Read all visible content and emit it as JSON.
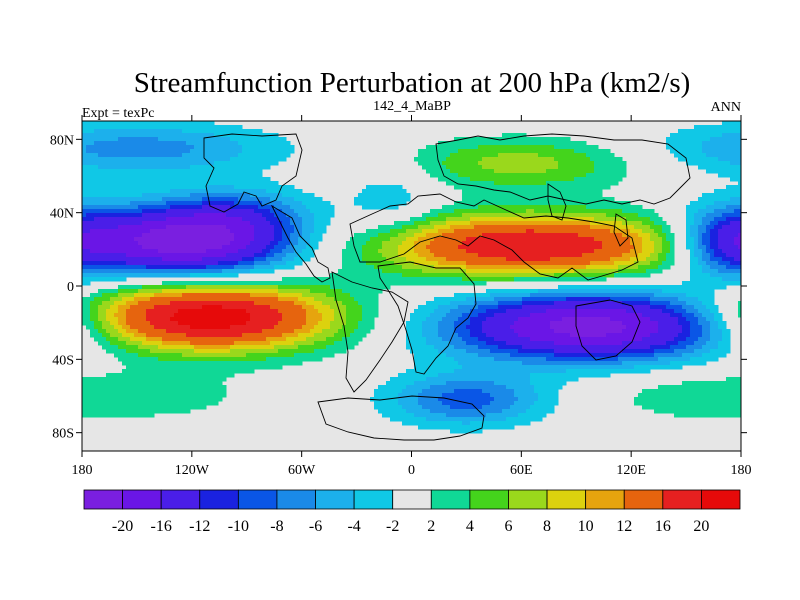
{
  "chart_data": {
    "type": "heatmap",
    "title": "Streamfunction Perturbation at 200 hPa (km2/s)",
    "subtitle_left": "Expt = texPc",
    "subtitle_center": "142_4_MaBP",
    "subtitle_right": "ANN",
    "x_ticks": [
      {
        "value": -180,
        "label": "180"
      },
      {
        "value": -120,
        "label": "120W"
      },
      {
        "value": -60,
        "label": "60W"
      },
      {
        "value": 0,
        "label": "0"
      },
      {
        "value": 60,
        "label": "60E"
      },
      {
        "value": 120,
        "label": "120E"
      },
      {
        "value": 180,
        "label": "180"
      }
    ],
    "y_ticks": [
      {
        "value": 80,
        "label": "80N"
      },
      {
        "value": 40,
        "label": "40N"
      },
      {
        "value": 0,
        "label": "0"
      },
      {
        "value": -40,
        "label": "40S"
      },
      {
        "value": -80,
        "label": "80S"
      }
    ],
    "xlim": [
      -180,
      180
    ],
    "ylim": [
      -90,
      90
    ],
    "levels": [
      -20,
      -16,
      -12,
      -10,
      -8,
      -6,
      -4,
      -2,
      2,
      4,
      6,
      8,
      10,
      12,
      16,
      20
    ],
    "level_labels": [
      "-20",
      "-16",
      "-12",
      "-10",
      "-8",
      "-6",
      "-4",
      "-2",
      "2",
      "4",
      "6",
      "8",
      "10",
      "12",
      "16",
      "20"
    ],
    "colors": [
      "#7a1fe0",
      "#6a16e6",
      "#4a1ee8",
      "#1a22e0",
      "#0a56e6",
      "#1a8ae8",
      "#1cb0ec",
      "#10c8e6",
      "#e6e6e6",
      "#10d896",
      "#44d41c",
      "#9ad81c",
      "#dcd20e",
      "#e6a40e",
      "#e6640e",
      "#e62020",
      "#e60a0a"
    ],
    "features": [
      {
        "lon": -125,
        "lat": 24,
        "slon": 42,
        "slat": 13,
        "amp": -23
      },
      {
        "lon": -95,
        "lat": 40,
        "slon": 28,
        "slat": 10,
        "amp": -6
      },
      {
        "lon": 172,
        "lat": 24,
        "slon": 20,
        "slat": 14,
        "amp": -11
      },
      {
        "lon": -112,
        "lat": -17,
        "slon": 50,
        "slat": 13,
        "amp": 23
      },
      {
        "lon": 65,
        "lat": 22,
        "slon": 60,
        "slat": 12,
        "amp": 20
      },
      {
        "lon": 98,
        "lat": -22,
        "slon": 55,
        "slat": 13,
        "amp": -22
      },
      {
        "lon": -150,
        "lat": 75,
        "slon": 55,
        "slat": 10,
        "amp": -7
      },
      {
        "lon": 60,
        "lat": 67,
        "slon": 45,
        "slat": 10,
        "amp": 7
      },
      {
        "lon": 30,
        "lat": -62,
        "slon": 30,
        "slat": 10,
        "amp": -9
      },
      {
        "lon": -140,
        "lat": -60,
        "slon": 40,
        "slat": 10,
        "amp": 3
      },
      {
        "lon": 150,
        "lat": -60,
        "slon": 35,
        "slat": 10,
        "amp": 3
      },
      {
        "lon": -10,
        "lat": 45,
        "slon": 18,
        "slat": 15,
        "amp": -4
      }
    ]
  }
}
